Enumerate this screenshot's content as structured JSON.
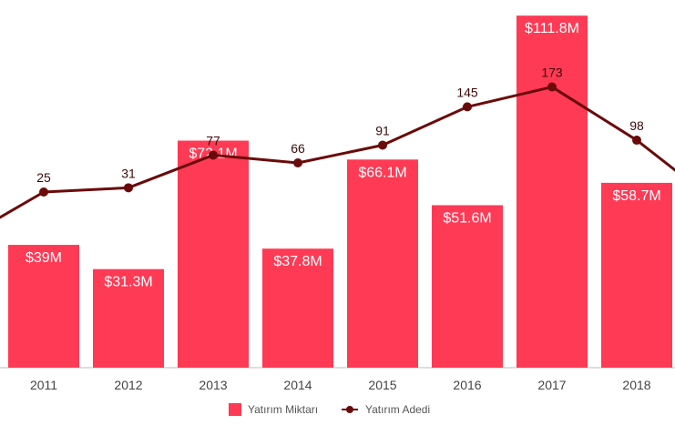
{
  "chart_data": {
    "type": "bar",
    "categories": [
      "2011",
      "2012",
      "2013",
      "2014",
      "2015",
      "2016",
      "2017",
      "2018"
    ],
    "series": [
      {
        "name": "Yatırım Miktarı",
        "kind": "bar",
        "color": "#ff3a55",
        "values": [
          39,
          31.3,
          72.1,
          37.8,
          66.1,
          51.6,
          111.8,
          58.7
        ],
        "labels": [
          "$39M",
          "$31.3M",
          "$72.1M",
          "$37.8M",
          "$66.1M",
          "$51.6M",
          "$111.8M",
          "$58.7M"
        ]
      },
      {
        "name": "Yatırım Adedi",
        "kind": "line",
        "color": "#6b0a0a",
        "values": [
          25,
          31,
          77,
          66,
          91,
          145,
          173,
          98
        ],
        "labels": [
          "25",
          "31",
          "77",
          "66",
          "91",
          "145",
          "173",
          "98"
        ]
      }
    ],
    "legend_position": "bottom",
    "grid": false
  }
}
